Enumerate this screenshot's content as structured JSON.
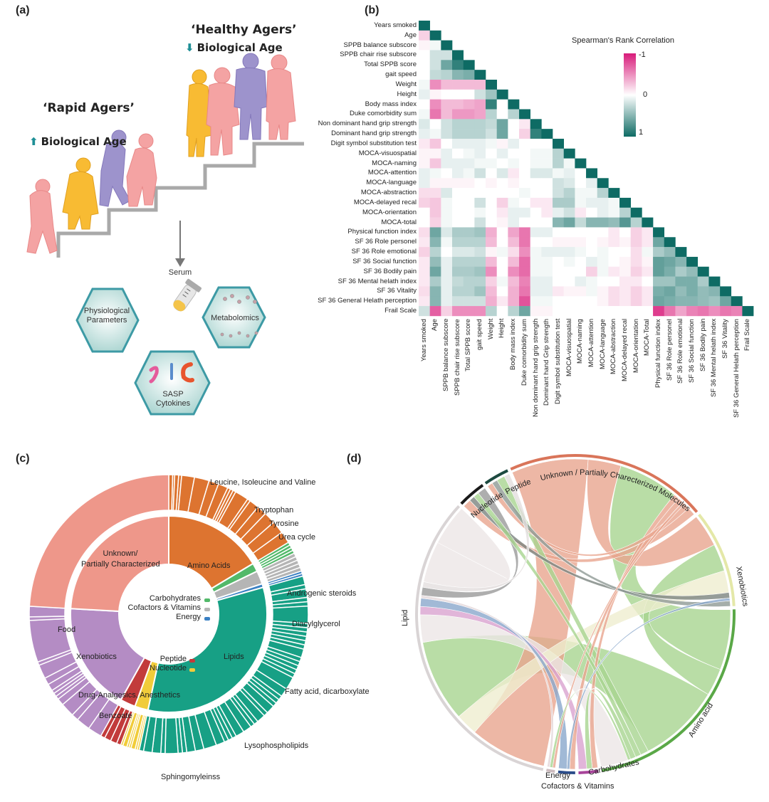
{
  "panels": {
    "a": "(a)",
    "b": "(b)",
    "c": "(c)",
    "d": "(d)"
  },
  "panel_a": {
    "healthy_title": "‘Healthy Agers’",
    "healthy_sub": "Biological Age",
    "rapid_title": "‘Rapid Agers’",
    "rapid_sub": "Biological Age",
    "serum": "Serum",
    "hex_physio_1": "Physiological",
    "hex_physio_2": "Parameters",
    "hex_sasp_1": "SASP",
    "hex_sasp_2": "Cytokines",
    "hex_metab": "Metabolomics",
    "colors": {
      "pink": "#f4a3a3",
      "yellow": "#f8bb33",
      "purple": "#9d93cc",
      "stairs": "#a9a9a9",
      "hex": "#3d9aa5",
      "arrow": "#1e8f96"
    }
  },
  "chart_data": [
    {
      "type": "heatmap",
      "title": "Spearman's Rank Correlation",
      "colorbar": {
        "min_label": "-1",
        "mid_label": "0",
        "max_label": "1",
        "min_color": "#d81b7a",
        "mid_color": "#ffffff",
        "max_color": "#0e6b64",
        "range": [
          -1,
          1
        ]
      },
      "row_labels": [
        "Years smoked",
        "Age",
        "SPPB balance subscore",
        "SPPB chair rise subscore",
        "Total SPPB score",
        "gait speed",
        "Weight",
        "Height",
        "Body mass index",
        "Duke comorbidity sum",
        "Non dominant hand grip strength",
        "Dominant hand grip strength",
        "Digit symbol substitution test",
        "MOCA-visuospatial",
        "MOCA-naming",
        "MOCA-attention",
        "MOCA-language",
        "MOCA-abstraction",
        "MOCA-delayed recal",
        "MOCA-orientation",
        "MOCA-total",
        "Physical function index",
        "SF 36 Role personel",
        "SF 36 Role emotional",
        "SF 36 Social function",
        "SF 36 Bodily pain",
        "SF 36 Mental helath index",
        "SF 36 Vitality",
        "SF 36 General Helath perception",
        "Frail Scale"
      ],
      "col_labels": [
        "Years smoked",
        "Age",
        "SPPB balance subscore",
        "SPPB chair rise subscore",
        "Total SPPB score",
        "gait speed",
        "Weight",
        "Height",
        "Body mass index",
        "Duke comorbidity sum",
        "Non dominant hand grip strength",
        "Dominant hand Grip strength",
        "Digit symbol substitution test",
        "MOCA-visuospatial",
        "MOCA-naming",
        "MOCA-attention",
        "MOCA-language",
        "MOCA-abstraction",
        "MOCA-delayed recal",
        "MOCA-orientation",
        "MOCA-Total",
        "Physical function index",
        "SF 36 Role personel",
        "SF 36 Role emotional",
        "SF 36 Social function",
        "SF 36 Bodily pain",
        "SF 36 Mental helath index",
        "SF 36 Vitality",
        "SF 36 General Helath perception",
        "Frail Scale"
      ],
      "lower_triangle": [
        [
          1
        ],
        [
          -0.2,
          1
        ],
        [
          -0.05,
          0.05,
          1
        ],
        [
          0,
          0.2,
          0.2,
          1
        ],
        [
          0,
          0.2,
          0.6,
          0.85,
          1
        ],
        [
          0,
          0.25,
          0.3,
          0.5,
          0.55,
          1
        ],
        [
          0.05,
          -0.5,
          -0.3,
          -0.3,
          -0.3,
          -0.3,
          1
        ],
        [
          0.1,
          -0.05,
          0,
          0,
          0,
          0.2,
          0.4,
          1
        ],
        [
          0,
          -0.5,
          -0.3,
          -0.3,
          -0.35,
          -0.4,
          0.85,
          0,
          1
        ],
        [
          0.05,
          -0.6,
          -0.3,
          -0.45,
          -0.45,
          -0.4,
          0.3,
          0,
          0.3,
          1
        ],
        [
          0.15,
          0,
          0.2,
          0.3,
          0.3,
          0.3,
          0.25,
          0.6,
          0,
          -0.1,
          1
        ],
        [
          0.1,
          0.05,
          0.2,
          0.3,
          0.3,
          0.3,
          0.2,
          0.6,
          0,
          -0.2,
          0.85,
          1
        ],
        [
          -0.1,
          -0.25,
          0,
          0.1,
          0.1,
          0.1,
          0.05,
          -0.05,
          0.1,
          0,
          0,
          0,
          1
        ],
        [
          -0.05,
          -0.05,
          0.1,
          0,
          0.05,
          0.1,
          0,
          0.1,
          0,
          0,
          0.05,
          0.05,
          0.3,
          1
        ],
        [
          -0.05,
          -0.25,
          0.1,
          0.1,
          0.1,
          0.05,
          0.05,
          0,
          0.05,
          0,
          0.05,
          0.05,
          0.3,
          0.05,
          1
        ],
        [
          0.1,
          0.05,
          0,
          0.1,
          0.05,
          0.2,
          0,
          0.15,
          -0.1,
          0,
          0.15,
          0.15,
          0.05,
          0.1,
          0,
          1
        ],
        [
          0.1,
          -0.05,
          -0.05,
          -0.05,
          -0.05,
          0,
          -0.05,
          0,
          -0.05,
          0,
          0,
          0,
          0.2,
          0.15,
          0,
          0.1,
          1
        ],
        [
          -0.15,
          -0.15,
          0.15,
          0,
          0,
          0,
          0,
          0,
          0,
          0.05,
          0,
          0,
          0.2,
          0.3,
          0.05,
          0.05,
          0.3,
          1
        ],
        [
          -0.2,
          -0.25,
          0.05,
          0,
          0,
          0.2,
          0,
          -0.2,
          0.05,
          0,
          -0.1,
          -0.1,
          0.35,
          0.35,
          0.05,
          0.1,
          0.1,
          0.05,
          1
        ],
        [
          0,
          -0.25,
          0.05,
          0,
          0,
          0.05,
          0,
          -0.1,
          0.1,
          0.1,
          0,
          -0.1,
          0.1,
          0.2,
          -0.1,
          0,
          0.1,
          0.05,
          0.3,
          1
        ],
        [
          0,
          -0.2,
          0.05,
          0,
          0,
          0.2,
          0,
          -0.05,
          0.1,
          0,
          0,
          0,
          0.5,
          0.6,
          0.25,
          0.5,
          0.5,
          0.45,
          0.7,
          0.3,
          1
        ],
        [
          -0.15,
          0.6,
          0.15,
          0.35,
          0.35,
          0.4,
          -0.35,
          0,
          -0.4,
          -0.6,
          0.1,
          0.1,
          0,
          0,
          0,
          0,
          0,
          -0.1,
          0,
          -0.2,
          -0.1,
          1
        ],
        [
          -0.1,
          0.5,
          0.05,
          0.3,
          0.3,
          0.3,
          -0.3,
          0,
          -0.3,
          -0.6,
          0,
          0,
          -0.05,
          -0.05,
          -0.05,
          0,
          -0.05,
          -0.1,
          -0.05,
          -0.2,
          -0.1,
          0.6,
          1
        ],
        [
          -0.2,
          0.3,
          0,
          0.15,
          0.15,
          0.2,
          -0.05,
          0.05,
          -0.15,
          -0.5,
          0.05,
          0.1,
          0.1,
          0.1,
          0.05,
          0,
          0.05,
          0,
          0,
          -0.15,
          0.05,
          0.35,
          0.45,
          1
        ],
        [
          -0.1,
          0.45,
          0.1,
          0.3,
          0.3,
          0.3,
          -0.3,
          0,
          -0.3,
          -0.65,
          0.05,
          0.05,
          0,
          0.05,
          0,
          0.1,
          0.05,
          0,
          -0.05,
          -0.15,
          -0.05,
          0.65,
          0.6,
          0.5,
          1
        ],
        [
          -0.1,
          0.6,
          0.1,
          0.35,
          0.35,
          0.4,
          -0.5,
          0,
          -0.5,
          -0.65,
          0.05,
          0.05,
          0,
          0,
          0,
          -0.2,
          0.05,
          -0.1,
          -0.05,
          -0.2,
          -0.1,
          0.65,
          0.55,
          0.35,
          0.45,
          1
        ],
        [
          -0.1,
          0.35,
          0.1,
          0.25,
          0.3,
          0.3,
          -0.2,
          0.05,
          -0.3,
          -0.55,
          0.1,
          0.1,
          0,
          0,
          0.1,
          0.05,
          0,
          0,
          -0.1,
          -0.1,
          0,
          0.4,
          0.4,
          0.55,
          0.55,
          0.35,
          1
        ],
        [
          -0.15,
          0.5,
          0.1,
          0.3,
          0.3,
          0.4,
          -0.3,
          0,
          -0.35,
          -0.6,
          0.1,
          0.1,
          -0.1,
          -0.05,
          -0.05,
          0.05,
          -0.05,
          -0.15,
          -0.1,
          -0.2,
          -0.1,
          0.55,
          0.6,
          0.45,
          0.55,
          0.45,
          0.5,
          1
        ],
        [
          -0.1,
          0.5,
          0.1,
          0.2,
          0.2,
          0.2,
          -0.35,
          -0.1,
          -0.35,
          -0.75,
          0.05,
          0.05,
          0,
          0,
          0,
          0,
          -0.05,
          -0.15,
          -0.1,
          -0.2,
          -0.1,
          0.6,
          0.55,
          0.5,
          0.5,
          0.45,
          0.4,
          0.6,
          1
        ],
        [
          0.2,
          -0.7,
          -0.2,
          -0.5,
          -0.5,
          -0.5,
          0.3,
          0,
          0.3,
          0.6,
          -0.05,
          -0.05,
          0,
          0,
          0,
          0,
          0,
          0,
          0,
          0,
          0,
          -0.85,
          -0.6,
          -0.4,
          -0.55,
          -0.6,
          -0.5,
          -0.6,
          -0.55,
          1
        ]
      ]
    },
    {
      "type": "pie",
      "subtype": "sunburst",
      "unit": "percent of metabolites",
      "inner": [
        {
          "name": "Amino Acids",
          "value": 16.4,
          "color": "#dd7430",
          "sub": [
            0.4,
            0.2,
            0.4,
            0.3,
            1.3,
            1.5,
            1,
            1,
            0.3,
            0.3,
            0.3,
            1.4,
            0.3,
            1,
            1,
            1.2,
            1.3,
            1.2
          ]
        },
        {
          "name": "Carbohydrates",
          "value": 1.4,
          "color": "#52b96a",
          "sub": [
            1,
            1,
            1,
            1
          ]
        },
        {
          "name": "Cofactors & Vitamins",
          "value": 2.2,
          "color": "#b5b5b5",
          "sub": [
            1,
            1,
            1,
            1,
            1
          ]
        },
        {
          "name": "Energy",
          "value": 0.6,
          "color": "#3a80c3",
          "sub": [
            1,
            1
          ]
        },
        {
          "name": "Lipids",
          "value": 32.8,
          "color": "#17a085",
          "sub": [
            2,
            1,
            2,
            1,
            1,
            4,
            1,
            1,
            1,
            1,
            1,
            1,
            2,
            1,
            1,
            1,
            1,
            1,
            3,
            2,
            1,
            1,
            1,
            2,
            1,
            2,
            1,
            1,
            2,
            2,
            1,
            1,
            1,
            2,
            3,
            2,
            2,
            1,
            1,
            3,
            1,
            2,
            2,
            1
          ]
        },
        {
          "name": "Nucleotide",
          "value": 2.2,
          "color": "#f1cc3a",
          "sub": [
            0.5,
            0.5,
            1,
            0.5,
            0.5,
            1,
            0.5
          ]
        },
        {
          "name": "Peptide",
          "value": 2.5,
          "color": "#c23b3b",
          "sub": [
            1,
            1.5,
            1.5,
            1
          ]
        },
        {
          "name": "Xenobiotics",
          "value": 17.8,
          "color": "#b48cc4",
          "sub": [
            2,
            2,
            1,
            2,
            1,
            0.5,
            0.5,
            0.5,
            1,
            1,
            2,
            0.5,
            6,
            0.5,
            1.5
          ]
        },
        {
          "name": "Unknown/ Partially Characterized",
          "value": 24.1,
          "color": "#ee978a",
          "sub": [
            1
          ]
        }
      ],
      "labels": {
        "unknown_1": "Unknown/",
        "unknown_2": "Partially Characterized",
        "amino": "Amino Acids",
        "carbs": "Carbohydrates",
        "cofactors": "Cofactors & Vitamins",
        "energy": "Energy",
        "peptide": "Peptide",
        "nucleotide": "Nucleotide",
        "lipids": "Lipids",
        "xeno": "Xenobiotics",
        "food": "Food",
        "drug": "Drug-Analgesics, Anesthetics",
        "benzoate": "Benzoate",
        "leucine": "Leucine, Isoleucine and Valine",
        "tryptophan": "Tryptophan",
        "tyrosine": "Tyrosine",
        "urea": "Urea cycle",
        "androgenic": "Androgenic steroids",
        "diacyl": "Diacylglycerol",
        "fatty": "Fatty acid, dicarboxylate",
        "lyso": "Lysophospholipids",
        "sphingo": "Sphingomyleinss"
      }
    },
    {
      "type": "chord",
      "sectors": [
        {
          "name": "Unknown / Partially Charecterized Molecules",
          "color": "#d9755a"
        },
        {
          "name": "Xenobiotics",
          "color": "#e4e8a8"
        },
        {
          "name": "Amino acid",
          "color": "#5aa847"
        },
        {
          "name": "Carbohydrates",
          "color": "#a8449a"
        },
        {
          "name": "Cofactors & Vitamins",
          "color": "#2b4d8a"
        },
        {
          "name": "Energy",
          "color": "#cdbcbf"
        },
        {
          "name": "Lipid",
          "color": "#d9d4d5"
        },
        {
          "name": "Nucleotide",
          "color": "#1a1a1a"
        },
        {
          "name": "Peptide",
          "color": "#1d4a40"
        }
      ],
      "chords": [
        {
          "from": 0,
          "to": 6,
          "value": 28,
          "color": "#e8a58f"
        },
        {
          "from": 0,
          "to": 1,
          "value": 12,
          "color": "#e8a58f"
        },
        {
          "from": 0,
          "to": 2,
          "value": 22,
          "color": "#a8d590"
        },
        {
          "from": 0,
          "to": 3,
          "value": 2,
          "color": "#e8a58f"
        },
        {
          "from": 0,
          "to": 4,
          "value": 2,
          "color": "#e8a58f"
        },
        {
          "from": 0,
          "to": 5,
          "value": 1,
          "color": "#e8a58f"
        },
        {
          "from": 0,
          "to": 8,
          "value": 2,
          "color": "#e8a58f"
        },
        {
          "from": 0,
          "to": 7,
          "value": 3,
          "color": "#e8a58f"
        },
        {
          "from": 1,
          "to": 2,
          "value": 10,
          "color": "#a8d590"
        },
        {
          "from": 1,
          "to": 6,
          "value": 8,
          "color": "#efedd0"
        },
        {
          "from": 1,
          "to": 7,
          "value": 2,
          "color": "#7c8480"
        },
        {
          "from": 1,
          "to": 4,
          "value": 1,
          "color": "#8aa7cc"
        },
        {
          "from": 1,
          "to": 8,
          "value": 2,
          "color": "#8e9a95"
        },
        {
          "from": 2,
          "to": 6,
          "value": 30,
          "color": "#a8d590"
        },
        {
          "from": 2,
          "to": 8,
          "value": 3,
          "color": "#a8d590"
        },
        {
          "from": 2,
          "to": 7,
          "value": 2,
          "color": "#a8d590"
        },
        {
          "from": 2,
          "to": 3,
          "value": 2,
          "color": "#a8d590"
        },
        {
          "from": 2,
          "to": 5,
          "value": 1,
          "color": "#a8d590"
        },
        {
          "from": 6,
          "to": 2,
          "value": 10,
          "color": "#ece6e6"
        },
        {
          "from": 6,
          "to": 3,
          "value": 3,
          "color": "#d9a3cf"
        },
        {
          "from": 6,
          "to": 4,
          "value": 3,
          "color": "#8aa7cc"
        },
        {
          "from": 6,
          "to": 5,
          "value": 1,
          "color": "#e3d7d9"
        },
        {
          "from": 6,
          "to": 7,
          "value": 3,
          "color": "#9a9a9a"
        },
        {
          "from": 6,
          "to": 8,
          "value": 2,
          "color": "#e3dede"
        },
        {
          "from": 6,
          "to": 6,
          "value": 15,
          "color": "#ece6e6"
        }
      ],
      "labels": {
        "unknown": "Unknown / Partially Charecterized Molecules",
        "xeno": "Xenobiotics",
        "amino": "Amino acid",
        "carbs": "Carbohydrates",
        "cofactors": "Cofactors & Vitamins",
        "energy": "Energy",
        "lipid": "Lipid",
        "nucleotide": "Nucleotide",
        "peptide": "Peptide"
      }
    }
  ]
}
